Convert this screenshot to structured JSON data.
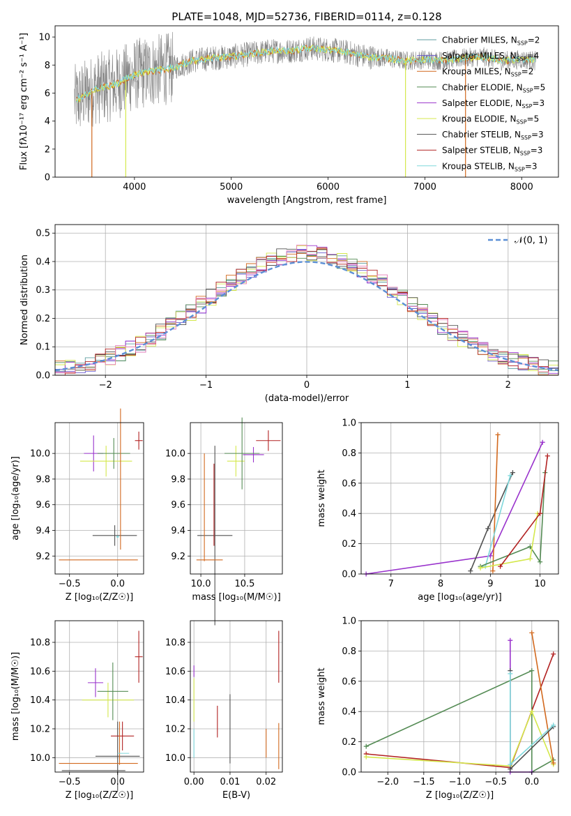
{
  "figure_title": "PLATE=1048, MJD=52736, FIBERID=0114, z=0.128",
  "colors": {
    "Chabrier MILES": "#5f9ea0",
    "Salpeter MILES": "#6a5acd",
    "Kroupa MILES": "#d2691e",
    "Chabrier ELODIE": "#548b54",
    "Salpeter ELODIE": "#9932cc",
    "Kroupa ELODIE": "#d4e84c",
    "Chabrier STELIB": "#505050",
    "Salpeter STELIB": "#b22222",
    "Kroupa STELIB": "#7fd8dc",
    "gaussian": "#5b8fd6",
    "hist_pink": "#e87cb8",
    "hist_blue": "#6495ed"
  },
  "chart_data": [
    {
      "id": "spectrum",
      "type": "line",
      "title": "PLATE=1048, MJD=52736, FIBERID=0114, z=0.128",
      "xlabel": "wavelength [Angstrom, rest frame]",
      "ylabel": "Flux [fλ10⁻¹⁷ erg cm⁻² s⁻¹ A⁻¹]",
      "xlim": [
        3180,
        8380
      ],
      "ylim": [
        0,
        10.8
      ],
      "xticks": [
        "4000",
        "5000",
        "6000",
        "7000",
        "8000"
      ],
      "yticks": [
        "0",
        "2",
        "4",
        "6",
        "8",
        "10"
      ],
      "grid": false,
      "legend_position": "top-right",
      "legend": [
        {
          "name": "Chabrier MILES, N",
          "sub": "SSP",
          "tail": "=2"
        },
        {
          "name": "Salpeter MILES, N",
          "sub": "SSP",
          "tail": "=4"
        },
        {
          "name": "Kroupa MILES, N",
          "sub": "SSP",
          "tail": "=2"
        },
        {
          "name": "Chabrier ELODIE, N",
          "sub": "SSP",
          "tail": "=5"
        },
        {
          "name": "Salpeter ELODIE, N",
          "sub": "SSP",
          "tail": "=3"
        },
        {
          "name": "Kroupa ELODIE, N",
          "sub": "SSP",
          "tail": "=5"
        },
        {
          "name": "Chabrier STELIB, N",
          "sub": "SSP",
          "tail": "=3"
        },
        {
          "name": "Salpeter STELIB, N",
          "sub": "SSP",
          "tail": "=3"
        },
        {
          "name": "Kroupa STELIB, N",
          "sub": "SSP",
          "tail": "=3"
        }
      ],
      "continuum": {
        "wavelength": [
          3400,
          3600,
          3800,
          4000,
          4200,
          4400,
          4600,
          4800,
          5000,
          5200,
          5400,
          5600,
          5800,
          6000,
          6200,
          6400,
          6600,
          6800,
          7000,
          7200,
          7400,
          7600,
          7800,
          8000,
          8150
        ],
        "flux": [
          5.5,
          6.3,
          6.6,
          7.3,
          7.6,
          7.8,
          8.3,
          8.5,
          8.6,
          8.8,
          9.0,
          9.0,
          9.2,
          9.1,
          8.9,
          8.6,
          8.5,
          8.3,
          8.4,
          8.3,
          8.5,
          8.6,
          8.3,
          8.4,
          8.3
        ]
      }
    },
    {
      "id": "residual_histogram",
      "type": "bar",
      "xlabel": "(data-model)/error",
      "ylabel": "Normed distribution",
      "xlim": [
        -2.5,
        2.5
      ],
      "ylim": [
        0,
        0.53
      ],
      "xticks": [
        "−2",
        "−1",
        "0",
        "1",
        "2"
      ],
      "yticks": [
        "0.0",
        "0.1",
        "0.2",
        "0.3",
        "0.4",
        "0.5"
      ],
      "grid": true,
      "legend_position": "top-right",
      "legend": [
        "𝒩(0, 1)"
      ],
      "bins": 50,
      "series_names": [
        "Chabrier MILES",
        "Salpeter MILES",
        "Kroupa MILES",
        "Chabrier ELODIE",
        "Salpeter ELODIE",
        "Kroupa ELODIE",
        "Chabrier STELIB",
        "Salpeter STELIB",
        "Kroupa STELIB"
      ]
    },
    {
      "id": "age_vs_Z",
      "type": "scatter",
      "xlabel": "Z [log₁₀(Z/Z☉)]",
      "ylabel": "age  [log₁₀(age/yr)]",
      "xlim": [
        -0.65,
        0.27
      ],
      "ylim": [
        9.06,
        10.24
      ],
      "xticks": [
        "−0.5",
        "0.0"
      ],
      "yticks": [
        "9.2",
        "9.4",
        "9.6",
        "9.8",
        "10.0"
      ],
      "grid": true,
      "points": [
        {
          "series": "Salpeter ELODIE",
          "x": -0.25,
          "y": 10.0,
          "xerr": 0.1,
          "yerr": 0.14
        },
        {
          "series": "Kroupa ELODIE",
          "x": -0.12,
          "y": 9.94,
          "xerr": 0.27,
          "yerr": 0.12
        },
        {
          "series": "Chabrier ELODIE",
          "x": -0.04,
          "y": 10.0,
          "xerr": 0.17,
          "yerr": 0.12
        },
        {
          "series": "Chabrier STELIB",
          "x": -0.03,
          "y": 9.36,
          "xerr": 0.23,
          "yerr": 0.08
        },
        {
          "series": "Kroupa MILES",
          "x": 0.03,
          "y": 9.8,
          "xerr": 0.0,
          "yerr": 0.55
        },
        {
          "series": "Kroupa MILES",
          "x": -0.2,
          "y": 9.17,
          "xerr": 0.41,
          "yerr": 0.0
        },
        {
          "series": "Kroupa STELIB",
          "x": 0.0,
          "y": 9.35,
          "xerr": 0.0,
          "yerr": 0.0
        },
        {
          "series": "Salpeter STELIB",
          "x": 0.22,
          "y": 10.1,
          "xerr": 0.04,
          "yerr": 0.07
        }
      ]
    },
    {
      "id": "age_vs_mass",
      "type": "scatter",
      "xlabel": "mass [log₁₀(M/M☉)]",
      "ylabel": "",
      "xlim": [
        9.88,
        10.93
      ],
      "ylim": [
        9.06,
        10.24
      ],
      "xticks": [
        "10.0",
        "10.5"
      ],
      "yticks": [
        "9.2",
        "9.4",
        "9.6",
        "9.8",
        "10.0"
      ],
      "grid": true,
      "points": [
        {
          "series": "Salpeter ELODIE",
          "x": 10.6,
          "y": 9.99,
          "xerr": 0.12,
          "yerr": 0.06
        },
        {
          "series": "Kroupa ELODIE",
          "x": 10.4,
          "y": 9.94,
          "xerr": 0.1,
          "yerr": 0.12
        },
        {
          "series": "Chabrier ELODIE",
          "x": 10.47,
          "y": 10.0,
          "xerr": 0.2,
          "yerr": 0.28
        },
        {
          "series": "Chabrier STELIB",
          "x": 10.16,
          "y": 9.36,
          "xerr": 0.2,
          "yerr": 0.7
        },
        {
          "series": "Kroupa MILES",
          "x": 10.04,
          "y": 9.58,
          "xerr": 0.0,
          "yerr": 0.42
        },
        {
          "series": "Kroupa MILES",
          "x": 10.1,
          "y": 9.17,
          "xerr": 0.15,
          "yerr": 0.0
        },
        {
          "series": "Salpeter STELIB",
          "x": 10.15,
          "y": 9.6,
          "xerr": 0.0,
          "yerr": 0.32
        },
        {
          "series": "Salpeter STELIB",
          "x": 10.77,
          "y": 10.1,
          "xerr": 0.14,
          "yerr": 0.08
        }
      ]
    },
    {
      "id": "massweight_vs_age",
      "type": "line",
      "xlabel": "age  [log₁₀(age/yr)]",
      "ylabel": "mass weight",
      "xlim": [
        6.4,
        10.37
      ],
      "ylim": [
        0,
        1
      ],
      "xticks": [
        "7",
        "8",
        "9",
        "10"
      ],
      "yticks": [
        "0.0",
        "0.2",
        "0.4",
        "0.6",
        "0.8",
        "1.0"
      ],
      "grid": true,
      "series": [
        {
          "series": "Salpeter ELODIE",
          "points": [
            [
              6.5,
              0.0
            ],
            [
              9.0,
              0.12
            ],
            [
              10.05,
              0.87
            ]
          ]
        },
        {
          "series": "Chabrier STELIB",
          "points": [
            [
              8.6,
              0.02
            ],
            [
              8.95,
              0.3
            ],
            [
              9.45,
              0.67
            ]
          ]
        },
        {
          "series": "Kroupa MILES",
          "points": [
            [
              9.05,
              0.02
            ],
            [
              9.15,
              0.92
            ]
          ]
        },
        {
          "series": "Kroupa STELIB",
          "points": [
            [
              8.9,
              0.05
            ],
            [
              9.4,
              0.65
            ]
          ]
        },
        {
          "series": "Chabrier ELODIE",
          "points": [
            [
              8.8,
              0.05
            ],
            [
              9.8,
              0.18
            ],
            [
              10.0,
              0.08
            ],
            [
              10.1,
              0.67
            ]
          ]
        },
        {
          "series": "Kroupa ELODIE",
          "points": [
            [
              8.8,
              0.04
            ],
            [
              9.8,
              0.1
            ],
            [
              9.95,
              0.4
            ]
          ]
        },
        {
          "series": "Salpeter STELIB",
          "points": [
            [
              9.2,
              0.05
            ],
            [
              10.0,
              0.4
            ],
            [
              10.15,
              0.78
            ]
          ]
        }
      ]
    },
    {
      "id": "mass_vs_Z",
      "type": "scatter",
      "xlabel": "Z [log₁₀(Z/Z☉)]",
      "ylabel": "mass [log₁₀(M/M☉)]",
      "xlim": [
        -0.65,
        0.27
      ],
      "ylim": [
        9.9,
        10.95
      ],
      "xticks": [
        "−0.5",
        "0.0"
      ],
      "yticks": [
        "10.0",
        "10.2",
        "10.4",
        "10.6",
        "10.8"
      ],
      "grid": true,
      "points": [
        {
          "series": "Salpeter ELODIE",
          "x": -0.23,
          "y": 10.52,
          "xerr": 0.08,
          "yerr": 0.1
        },
        {
          "series": "Kroupa ELODIE",
          "x": -0.1,
          "y": 10.4,
          "xerr": 0.27,
          "yerr": 0.12
        },
        {
          "series": "Chabrier ELODIE",
          "x": -0.05,
          "y": 10.46,
          "xerr": 0.16,
          "yerr": 0.2
        },
        {
          "series": "Chabrier STELIB",
          "x": 0.0,
          "y": 10.01,
          "xerr": 0.23,
          "yerr": 0.24
        },
        {
          "series": "Salpeter STELIB",
          "x": 0.05,
          "y": 10.15,
          "xerr": 0.12,
          "yerr": 0.1
        },
        {
          "series": "Kroupa MILES",
          "x": -0.2,
          "y": 9.96,
          "xerr": 0.41,
          "yerr": 0.0
        },
        {
          "series": "Kroupa MILES",
          "x": 0.02,
          "y": 10.1,
          "xerr": 0.0,
          "yerr": 0.15
        },
        {
          "series": "Kroupa STELIB",
          "x": 0.06,
          "y": 10.03,
          "xerr": 0.06,
          "yerr": 0.0
        },
        {
          "series": "Salpeter STELIB",
          "x": 0.22,
          "y": 10.7,
          "xerr": 0.04,
          "yerr": 0.18
        },
        {
          "series": "Chabrier STELIB",
          "x": -0.25,
          "y": 9.91,
          "xerr": 0.33,
          "yerr": 0.0
        }
      ]
    },
    {
      "id": "mass_vs_EBV",
      "type": "scatter",
      "xlabel": "E(B-V)",
      "ylabel": "",
      "xlim": [
        -0.001,
        0.0245
      ],
      "ylim": [
        9.9,
        10.95
      ],
      "xticks": [
        "0.00",
        "0.01",
        "0.02"
      ],
      "yticks": [
        "10.0",
        "10.2",
        "10.4",
        "10.6",
        "10.8"
      ],
      "grid": true,
      "points": [
        {
          "series": "Salpeter ELODIE",
          "x": 0.0,
          "y": 10.6,
          "xerr": 0,
          "yerr": 0.04
        },
        {
          "series": "Kroupa ELODIE",
          "x": 0.0,
          "y": 10.4,
          "xerr": 0,
          "yerr": 0.15
        },
        {
          "series": "Kroupa STELIB",
          "x": 0.0,
          "y": 10.1,
          "xerr": 0,
          "yerr": 0.1
        },
        {
          "series": "Salpeter STELIB",
          "x": 0.0065,
          "y": 10.25,
          "xerr": 0,
          "yerr": 0.11
        },
        {
          "series": "Chabrier STELIB",
          "x": 0.01,
          "y": 10.2,
          "xerr": 0,
          "yerr": 0.24
        },
        {
          "series": "Kroupa MILES",
          "x": 0.02,
          "y": 10.1,
          "xerr": 0,
          "yerr": 0.1
        },
        {
          "series": "Kroupa MILES",
          "x": 0.0235,
          "y": 10.08,
          "xerr": 0,
          "yerr": 0.16
        },
        {
          "series": "Salpeter STELIB",
          "x": 0.0235,
          "y": 10.7,
          "xerr": 0,
          "yerr": 0.18
        }
      ]
    },
    {
      "id": "massweight_vs_Z",
      "type": "line",
      "xlabel": "Z [log₁₀(Z/Z☉)]",
      "ylabel": "mass weight",
      "xlim": [
        -2.37,
        0.37
      ],
      "ylim": [
        0,
        1
      ],
      "xticks": [
        "−2.0",
        "−1.5",
        "−1.0",
        "−0.5",
        "0.0"
      ],
      "yticks": [
        "0.0",
        "0.2",
        "0.4",
        "0.6",
        "0.8",
        "1.0"
      ],
      "grid": true,
      "series": [
        {
          "series": "Chabrier ELODIE",
          "points": [
            [
              -2.3,
              0.17
            ],
            [
              0.0,
              0.67
            ],
            [
              0.0,
              0.0
            ],
            [
              0.3,
              0.08
            ]
          ]
        },
        {
          "series": "Salpeter STELIB",
          "points": [
            [
              -2.3,
              0.12
            ],
            [
              -0.3,
              0.03
            ],
            [
              0.3,
              0.78
            ]
          ]
        },
        {
          "series": "Kroupa ELODIE",
          "points": [
            [
              -2.3,
              0.1
            ],
            [
              -0.3,
              0.04
            ],
            [
              0.0,
              0.4
            ],
            [
              0.3,
              0.05
            ]
          ]
        },
        {
          "series": "Kroupa MILES",
          "points": [
            [
              0.0,
              0.92
            ],
            [
              0.3,
              0.06
            ]
          ]
        },
        {
          "series": "Salpeter ELODIE",
          "points": [
            [
              -0.3,
              0.87
            ],
            [
              -0.3,
              0.0
            ],
            [
              0.0,
              0.0
            ]
          ]
        },
        {
          "series": "Chabrier STELIB",
          "points": [
            [
              -0.3,
              0.67
            ],
            [
              -0.3,
              0.02
            ],
            [
              0.3,
              0.3
            ]
          ]
        },
        {
          "series": "Kroupa STELIB",
          "points": [
            [
              -0.3,
              0.65
            ],
            [
              -0.3,
              0.05
            ],
            [
              0.3,
              0.31
            ]
          ]
        }
      ]
    }
  ]
}
